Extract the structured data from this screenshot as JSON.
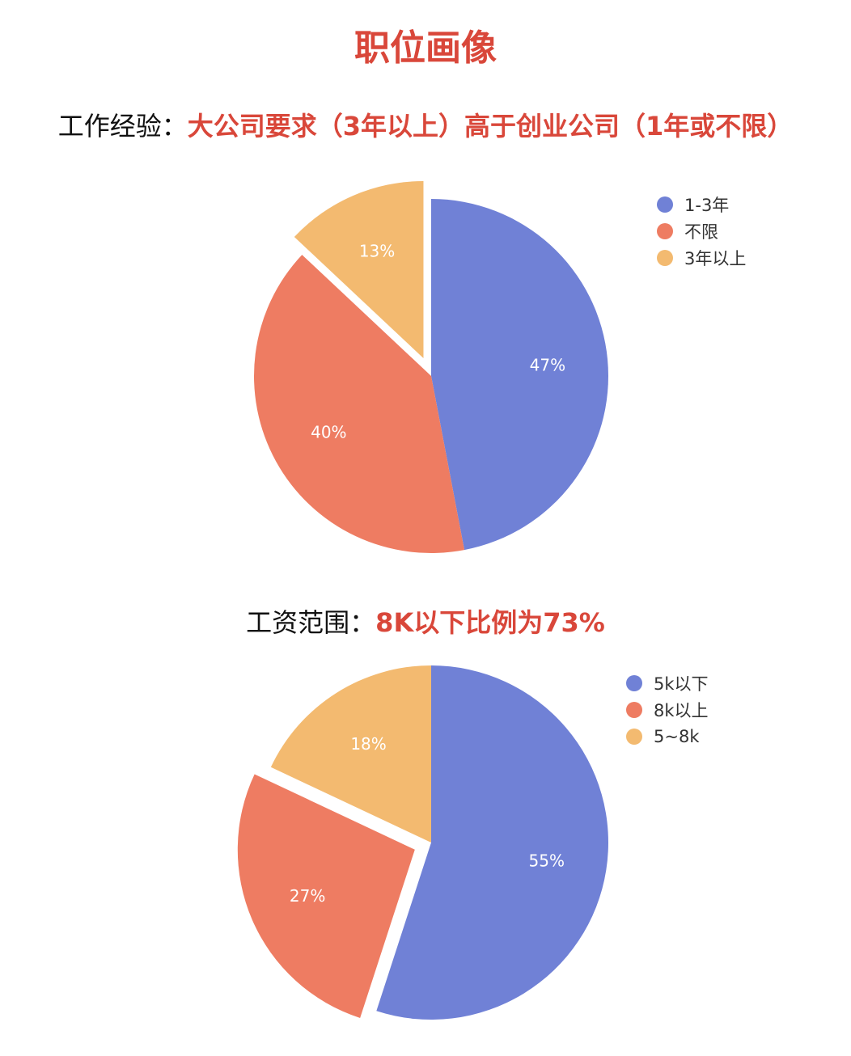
{
  "page": {
    "title": "职位画像"
  },
  "colors": {
    "accent": "#d9473a",
    "slice_blue": "#7081d6",
    "slice_orange": "#ee7c62",
    "slice_yellow": "#f3ba70"
  },
  "sections": [
    {
      "label": "工作经验：",
      "highlight": "大公司要求（3年以上）高于创业公司（1年或不限）"
    },
    {
      "label": "工资范围：",
      "highlight": "8K以下比例为73%"
    }
  ],
  "chart_data": [
    {
      "type": "pie",
      "slices": [
        {
          "name": "1-3年",
          "value": 47,
          "label": "47%",
          "color": "#7081d6"
        },
        {
          "name": "不限",
          "value": 40,
          "label": "40%",
          "color": "#ee7c62"
        },
        {
          "name": "3年以上",
          "value": 13,
          "label": "13%",
          "color": "#f3ba70",
          "exploded": true
        }
      ],
      "legend": [
        "1-3年",
        "不限",
        "3年以上"
      ],
      "legend_position": "top-right"
    },
    {
      "type": "pie",
      "slices": [
        {
          "name": "5k以下",
          "value": 55,
          "label": "55%",
          "color": "#7081d6"
        },
        {
          "name": "8k以上",
          "value": 27,
          "label": "27%",
          "color": "#ee7c62",
          "exploded": true
        },
        {
          "name": "5~8k",
          "value": 18,
          "label": "18%",
          "color": "#f3ba70"
        }
      ],
      "legend": [
        "5k以下",
        "8k以上",
        "5~8k"
      ],
      "legend_position": "top-right"
    }
  ]
}
